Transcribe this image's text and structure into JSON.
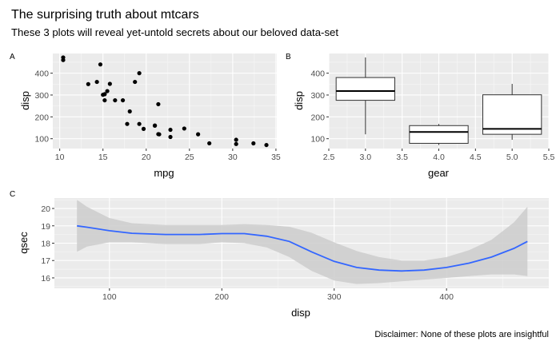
{
  "title": "The surprising truth about mtcars",
  "subtitle": "These 3 plots will reveal yet-untold secrets about our beloved data-set",
  "caption": "Disclaimer: None of these plots are insightful",
  "colors": {
    "panel_bg": "#ebebeb",
    "grid_major": "#ffffff",
    "smooth_line": "#3366ff",
    "ribbon": "#cccccc"
  },
  "chart_data": [
    {
      "tag": "A",
      "type": "scatter",
      "xlabel": "mpg",
      "ylabel": "disp",
      "xlim": [
        9.2,
        35.1
      ],
      "ylim": [
        55,
        490
      ],
      "xticks": [
        10,
        15,
        20,
        25,
        30,
        35
      ],
      "yticks": [
        100,
        200,
        300,
        400
      ],
      "grid": true,
      "points": [
        [
          21.0,
          160.0
        ],
        [
          21.0,
          160.0
        ],
        [
          22.8,
          108.0
        ],
        [
          21.4,
          258.0
        ],
        [
          18.7,
          360.0
        ],
        [
          18.1,
          225.0
        ],
        [
          14.3,
          360.0
        ],
        [
          24.4,
          146.7
        ],
        [
          22.8,
          140.8
        ],
        [
          19.2,
          167.6
        ],
        [
          17.8,
          167.6
        ],
        [
          16.4,
          275.8
        ],
        [
          17.3,
          275.8
        ],
        [
          15.2,
          275.8
        ],
        [
          10.4,
          472.0
        ],
        [
          10.4,
          460.0
        ],
        [
          14.7,
          440.0
        ],
        [
          32.4,
          78.7
        ],
        [
          30.4,
          75.7
        ],
        [
          33.9,
          71.1
        ],
        [
          21.5,
          120.1
        ],
        [
          15.5,
          318.0
        ],
        [
          15.2,
          304.0
        ],
        [
          13.3,
          350.0
        ],
        [
          19.2,
          400.0
        ],
        [
          27.3,
          79.0
        ],
        [
          26.0,
          120.3
        ],
        [
          30.4,
          95.1
        ],
        [
          15.8,
          351.0
        ],
        [
          19.7,
          145.0
        ],
        [
          15.0,
          301.0
        ],
        [
          21.4,
          121.0
        ]
      ]
    },
    {
      "tag": "B",
      "type": "box",
      "xlabel": "gear",
      "ylabel": "disp",
      "xlim": [
        2.5,
        5.5
      ],
      "ylim": [
        55,
        490
      ],
      "xticks": [
        2.5,
        3.0,
        3.5,
        4.0,
        4.5,
        5.0,
        5.5
      ],
      "xtick_labels": [
        "2.5",
        "3.0",
        "3.5",
        "4.0",
        "4.5",
        "5.0",
        "5.5"
      ],
      "yticks": [
        100,
        200,
        300,
        400
      ],
      "grid": true,
      "boxes": [
        {
          "x": 3,
          "min": 120.1,
          "q1": 275.8,
          "median": 318.0,
          "q3": 380.0,
          "max": 472.0
        },
        {
          "x": 4,
          "min": 71.1,
          "q1": 78.9,
          "median": 130.9,
          "q3": 160.0,
          "max": 167.6
        },
        {
          "x": 5,
          "min": 95.1,
          "q1": 120.3,
          "median": 145.0,
          "q3": 301.0,
          "max": 351.0
        }
      ],
      "box_width": 0.8
    },
    {
      "tag": "C",
      "type": "line",
      "subtype": "smooth-with-confidence-band",
      "xlabel": "disp",
      "ylabel": "qsec",
      "xlim": [
        51,
        491
      ],
      "ylim": [
        15.4,
        20.6
      ],
      "xticks": [
        100,
        200,
        300,
        400
      ],
      "yticks": [
        16,
        17,
        18,
        19,
        20
      ],
      "grid": true,
      "x": [
        71.1,
        80,
        100,
        120,
        150,
        180,
        200,
        220,
        240,
        260,
        280,
        300,
        320,
        340,
        360,
        380,
        400,
        420,
        440,
        460,
        472
      ],
      "y": [
        19.0,
        18.92,
        18.72,
        18.57,
        18.5,
        18.5,
        18.55,
        18.55,
        18.4,
        18.1,
        17.5,
        16.95,
        16.6,
        16.45,
        16.4,
        16.45,
        16.6,
        16.85,
        17.2,
        17.7,
        18.1
      ],
      "lower": [
        17.5,
        17.8,
        18.05,
        18.05,
        17.95,
        17.95,
        18.05,
        18.0,
        17.75,
        17.2,
        16.4,
        15.85,
        15.65,
        15.7,
        15.8,
        15.9,
        16.0,
        16.1,
        16.2,
        16.2,
        16.1
      ],
      "upper": [
        20.5,
        20.1,
        19.45,
        19.15,
        19.05,
        19.05,
        19.05,
        19.1,
        19.05,
        18.95,
        18.6,
        18.05,
        17.55,
        17.2,
        17.0,
        17.0,
        17.2,
        17.6,
        18.2,
        19.2,
        20.1
      ]
    }
  ]
}
